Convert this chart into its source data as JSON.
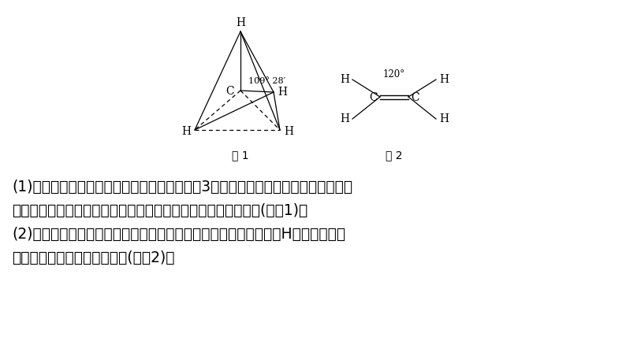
{
  "bg_color": "#ffffff",
  "fig1_label": "图 1",
  "fig2_label": "图 2",
  "angle_label1": "109° 28′",
  "angle_label2": "120°",
  "text_lines": [
    "(1)甲烷分子中所有原子一定不共平面，最多有3个原子处在一个平面上，即分子中碳",
    "原子若以四个单键与其他原子相连，则所有原子一定不能共平面(如图1)。",
    "(2)乙烯分子中所有原子一定共平面，若用其他原子代替其中的任何H原子，所得有",
    "机物中的所有原子仍然共平面(如图2)。"
  ],
  "font_size_text": 13.5,
  "font_size_label": 11
}
